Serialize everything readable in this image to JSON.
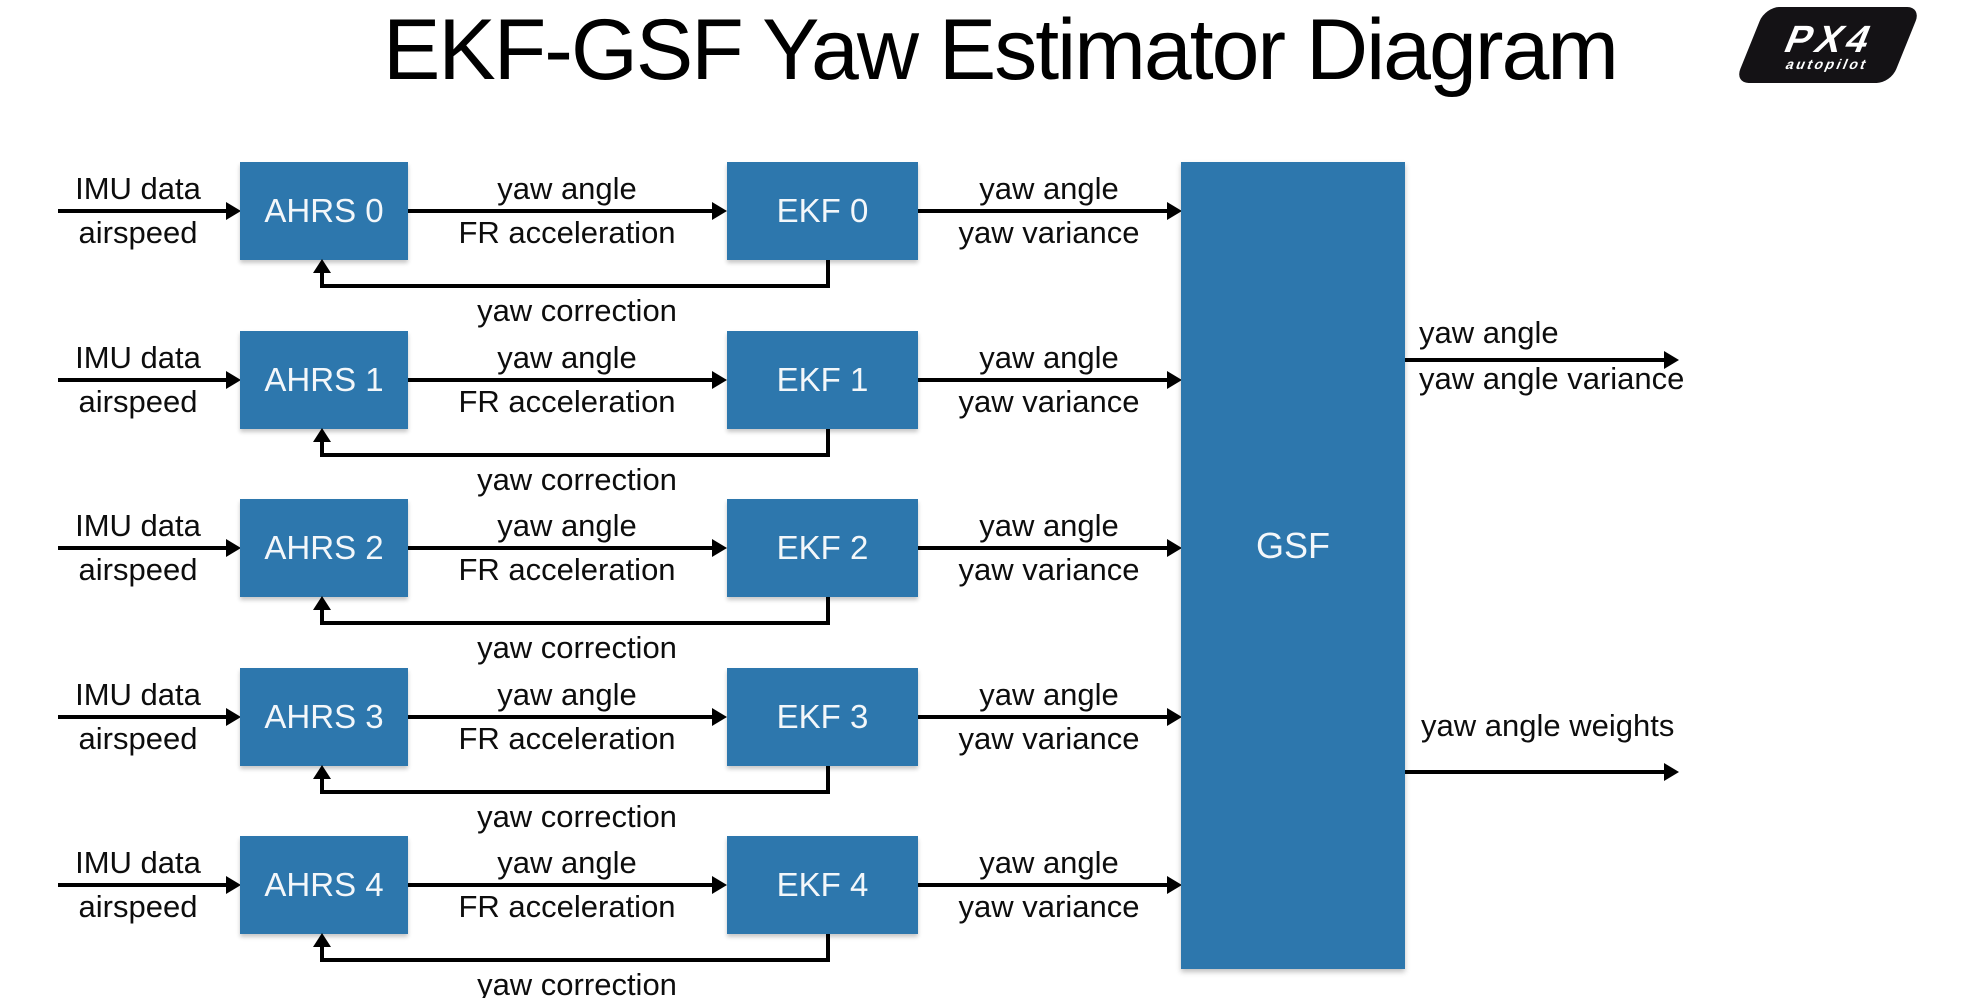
{
  "title": "EKF-GSF Yaw Estimator Diagram",
  "logo": {
    "brand": "PX4",
    "sub": "autopilot"
  },
  "colors": {
    "box_blue": "#2d77ad",
    "line": "#000000"
  },
  "rows": [
    {
      "input_line1": "IMU data",
      "input_line2": "airspeed",
      "ahrs": "AHRS 0",
      "mid_line1": "yaw angle",
      "mid_line2": "FR acceleration",
      "ekf": "EKF 0",
      "out_line1": "yaw angle",
      "out_line2": "yaw variance",
      "feedback": "yaw correction"
    },
    {
      "input_line1": "IMU data",
      "input_line2": "airspeed",
      "ahrs": "AHRS 1",
      "mid_line1": "yaw angle",
      "mid_line2": "FR acceleration",
      "ekf": "EKF 1",
      "out_line1": "yaw angle",
      "out_line2": "yaw variance",
      "feedback": "yaw correction"
    },
    {
      "input_line1": "IMU data",
      "input_line2": "airspeed",
      "ahrs": "AHRS 2",
      "mid_line1": "yaw angle",
      "mid_line2": "FR acceleration",
      "ekf": "EKF 2",
      "out_line1": "yaw angle",
      "out_line2": "yaw variance",
      "feedback": "yaw correction"
    },
    {
      "input_line1": "IMU data",
      "input_line2": "airspeed",
      "ahrs": "AHRS 3",
      "mid_line1": "yaw angle",
      "mid_line2": "FR acceleration",
      "ekf": "EKF 3",
      "out_line1": "yaw angle",
      "out_line2": "yaw variance",
      "feedback": "yaw correction"
    },
    {
      "input_line1": "IMU data",
      "input_line2": "airspeed",
      "ahrs": "AHRS 4",
      "mid_line1": "yaw angle",
      "mid_line2": "FR acceleration",
      "ekf": "EKF 4",
      "out_line1": "yaw angle",
      "out_line2": "yaw variance",
      "feedback": "yaw correction"
    }
  ],
  "gsf": {
    "label": "GSF"
  },
  "outputs": [
    {
      "line1": "yaw angle",
      "line2": "yaw angle variance"
    },
    {
      "line1": "yaw angle weights"
    }
  ]
}
